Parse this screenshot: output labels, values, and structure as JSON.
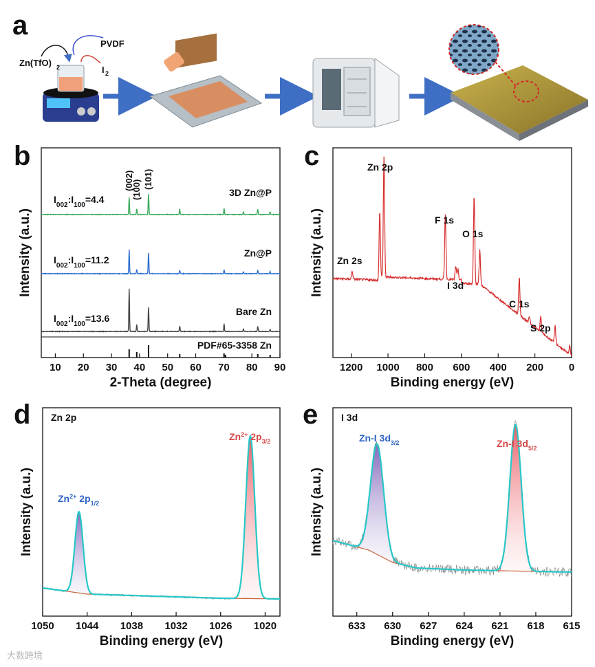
{
  "panel_labels": {
    "a": "a",
    "b": "b",
    "c": "c",
    "d": "d",
    "e": "e"
  },
  "schematic": {
    "reagent_zn": "Zn(TfO)",
    "reagent_zn_sub": "2",
    "reagent_pvdf": "PVDF",
    "reagent_i": "I",
    "reagent_i_sub": "2",
    "colors": {
      "arrow": "#3f6fc4",
      "film": "#b29a3a",
      "plate": "#8a8f96"
    }
  },
  "chart_data": [
    {
      "id": "b",
      "type": "line",
      "xlabel": "2-Theta (degree)",
      "ylabel": "Intensity (a.u.)",
      "xlim": [
        5,
        90
      ],
      "xticks": [
        10,
        20,
        30,
        40,
        50,
        60,
        70,
        80,
        90
      ],
      "series": [
        {
          "name": "3D Zn@P",
          "color": "#3daa5c",
          "ratio_main": "I",
          "ratio_sub1": "002",
          "ratio_mid": ":I",
          "ratio_sub2": "100",
          "ratio_val": "=4.4",
          "peaks": [
            [
              36.3,
              25
            ],
            [
              39.0,
              8
            ],
            [
              43.2,
              30
            ],
            [
              54.3,
              8
            ],
            [
              70.1,
              9
            ],
            [
              77.0,
              4
            ],
            [
              82.1,
              8
            ],
            [
              86.5,
              4
            ]
          ]
        },
        {
          "name": "Zn@P",
          "color": "#2f6fcf",
          "ratio_main": "I",
          "ratio_sub1": "002",
          "ratio_mid": ":I",
          "ratio_sub2": "100",
          "ratio_val": "=11.2",
          "peaks": [
            [
              36.3,
              35
            ],
            [
              39.0,
              6
            ],
            [
              43.2,
              30
            ],
            [
              54.3,
              5
            ],
            [
              70.1,
              6
            ],
            [
              77.0,
              3
            ],
            [
              82.1,
              5
            ],
            [
              86.5,
              3
            ]
          ]
        },
        {
          "name": "Bare Zn",
          "color": "#444444",
          "ratio_main": "I",
          "ratio_sub1": "002",
          "ratio_mid": ":I",
          "ratio_sub2": "100",
          "ratio_val": "=13.6",
          "peaks": [
            [
              36.3,
              62
            ],
            [
              39.0,
              10
            ],
            [
              43.2,
              35
            ],
            [
              54.3,
              8
            ],
            [
              70.1,
              11
            ],
            [
              77.0,
              4
            ],
            [
              82.1,
              7
            ],
            [
              86.5,
              3
            ]
          ]
        }
      ],
      "reference": {
        "name": "PDF#65-3358 Zn",
        "lines": [
          [
            36.3,
            12
          ],
          [
            39.0,
            8
          ],
          [
            43.2,
            18
          ],
          [
            54.3,
            5
          ],
          [
            70.1,
            6
          ],
          [
            70.6,
            4
          ],
          [
            82.1,
            5
          ],
          [
            86.5,
            4
          ]
        ]
      },
      "peak_labels": [
        {
          "label": "(002)",
          "x": 36.3
        },
        {
          "label": "(100)",
          "x": 39.0
        },
        {
          "label": "(101)",
          "x": 43.2
        }
      ]
    },
    {
      "id": "c",
      "type": "line",
      "xlabel": "Binding energy (eV)",
      "ylabel": "Intensity (a.u.)",
      "xlim": [
        1300,
        0
      ],
      "xticks": [
        1200,
        1000,
        800,
        600,
        400,
        200,
        0
      ],
      "color": "#d62e2e",
      "annotations": [
        {
          "label": "Zn 2p",
          "x": 1022
        },
        {
          "label": "Zn 2s",
          "x": 1195
        },
        {
          "label": "F 1s",
          "x": 688
        },
        {
          "label": "O 1s",
          "x": 531
        },
        {
          "label": "I 3d",
          "x": 620
        },
        {
          "label": "C 1s",
          "x": 285
        },
        {
          "label": "S 2p",
          "x": 168
        }
      ],
      "peaks": [
        [
          1045,
          95
        ],
        [
          1022,
          175
        ],
        [
          1195,
          12
        ],
        [
          688,
          95
        ],
        [
          631,
          20
        ],
        [
          619,
          15
        ],
        [
          531,
          130
        ],
        [
          500,
          50
        ],
        [
          285,
          55
        ],
        [
          168,
          22
        ],
        [
          230,
          10
        ],
        [
          90,
          25
        ],
        [
          10,
          14
        ]
      ]
    },
    {
      "id": "d",
      "type": "line",
      "title": "Zn 2p",
      "xlabel": "Binding energy (eV)",
      "ylabel": "Intensity (a.u.)",
      "xlim": [
        1050,
        1018
      ],
      "xticks": [
        1050,
        1044,
        1038,
        1032,
        1026,
        1020
      ],
      "fit_color": "#28c7c7",
      "background_color": "#c9653c",
      "peaks": [
        {
          "label": "Zn",
          "sup": "2+",
          "orbital": " 2p",
          "sub": "1/2",
          "center": 1045.1,
          "height": 0.5,
          "color": "#2d64c4"
        },
        {
          "label": "Zn",
          "sup": "2+",
          "orbital": " 2p",
          "sub": "3/2",
          "center": 1022.0,
          "height": 1.0,
          "color": "#d44848"
        }
      ]
    },
    {
      "id": "e",
      "type": "line",
      "title": "I 3d",
      "xlabel": "Binding energy (eV)",
      "ylabel": "Intensity (a.u.)",
      "xlim": [
        635,
        615
      ],
      "xticks": [
        633,
        630,
        627,
        624,
        621,
        618,
        615
      ],
      "fit_color": "#28c7c7",
      "background_color": "#c9653c",
      "peaks": [
        {
          "label": "Zn-I 3d",
          "sub": "3/2",
          "center": 631.3,
          "height": 0.68,
          "color": "#2d64c4"
        },
        {
          "label": "Zn-I 3d",
          "sub": "5/2",
          "center": 619.7,
          "height": 0.9,
          "color": "#d44848"
        }
      ]
    }
  ],
  "watermark": "大数跨境"
}
